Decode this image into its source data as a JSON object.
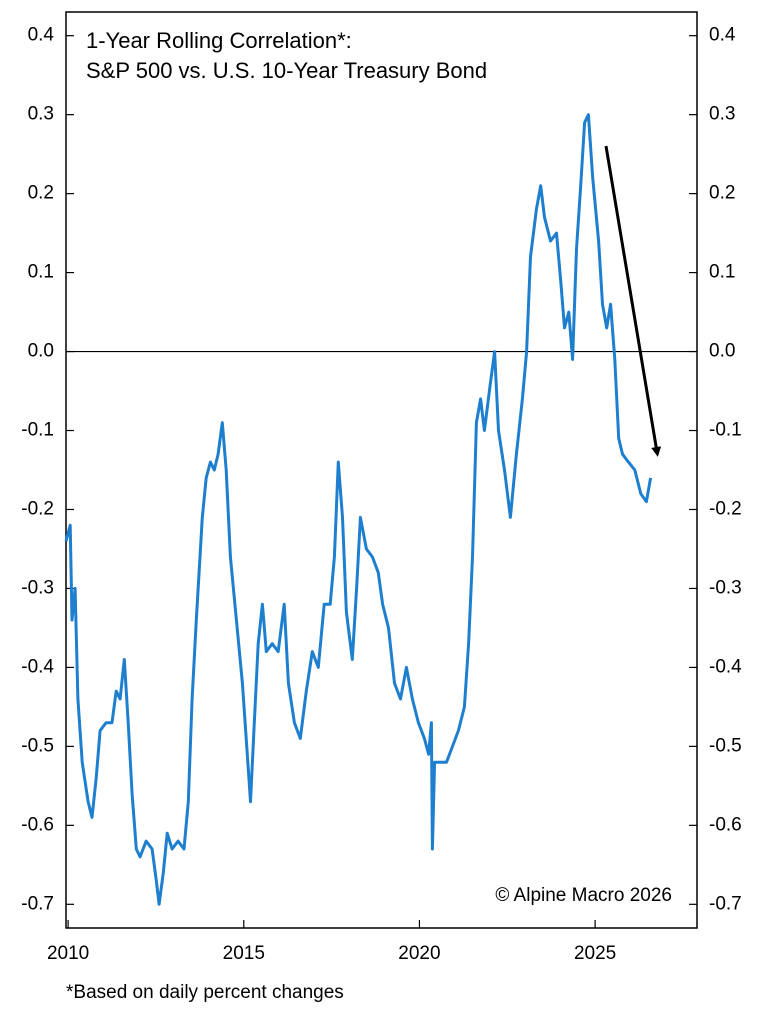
{
  "chart_data": {
    "type": "line",
    "title": [
      "1-Year Rolling Correlation*:",
      "S&P 500 vs. U.S. 10-Year Treasury Bond"
    ],
    "annotation": "© Alpine Macro 2026",
    "footnote": "*Based on daily percent changes",
    "xlim": [
      2009.94,
      2027.9
    ],
    "xticks": [
      2010,
      2015,
      2020,
      2025
    ],
    "ylim": [
      -0.73,
      0.43
    ],
    "yticks": [
      0.4,
      0.3,
      0.2,
      0.1,
      {
        "value": 0,
        "label": "0.0"
      },
      -0.1,
      -0.2,
      -0.3,
      -0.4,
      -0.5,
      -0.6,
      -0.7
    ],
    "zero_line": true,
    "series": [
      {
        "color": "#1f7fcf",
        "x": [
          2009.94,
          2010.06,
          2010.11,
          2010.2,
          2010.28,
          2010.4,
          2010.57,
          2010.68,
          2010.8,
          2010.91,
          2011.08,
          2011.25,
          2011.37,
          2011.48,
          2011.6,
          2011.71,
          2011.82,
          2011.94,
          2012.05,
          2012.22,
          2012.39,
          2012.51,
          2012.59,
          2012.71,
          2012.82,
          2012.96,
          2013.13,
          2013.3,
          2013.42,
          2013.53,
          2013.65,
          2013.82,
          2013.93,
          2014.05,
          2014.16,
          2014.27,
          2014.39,
          2014.5,
          2014.62,
          2014.79,
          2014.96,
          2015.07,
          2015.19,
          2015.3,
          2015.41,
          2015.53,
          2015.64,
          2015.81,
          2015.98,
          2016.15,
          2016.27,
          2016.44,
          2016.61,
          2016.78,
          2016.95,
          2017.12,
          2017.29,
          2017.46,
          2017.58,
          2017.69,
          2017.81,
          2017.92,
          2018.09,
          2018.21,
          2018.32,
          2018.49,
          2018.66,
          2018.83,
          2018.95,
          2019.12,
          2019.29,
          2019.46,
          2019.63,
          2019.8,
          2019.97,
          2020.14,
          2020.26,
          2020.34,
          2020.37,
          2020.43,
          2020.6,
          2020.77,
          2020.94,
          2021.11,
          2021.28,
          2021.4,
          2021.51,
          2021.62,
          2021.74,
          2021.85,
          2022.02,
          2022.14,
          2022.25,
          2022.42,
          2022.59,
          2022.76,
          2022.93,
          2023.05,
          2023.16,
          2023.33,
          2023.45,
          2023.56,
          2023.73,
          2023.9,
          2024.02,
          2024.13,
          2024.25,
          2024.36,
          2024.47,
          2024.59,
          2024.7,
          2024.81,
          2024.93,
          2025.1,
          2025.21,
          2025.33,
          2025.44,
          2025.56,
          2025.67,
          2025.78,
          2025.95,
          2026.13,
          2026.3,
          2026.46,
          2026.58
        ],
        "values": [
          -0.24,
          -0.22,
          -0.34,
          -0.3,
          -0.44,
          -0.52,
          -0.57,
          -0.59,
          -0.54,
          -0.48,
          -0.47,
          -0.47,
          -0.43,
          -0.44,
          -0.39,
          -0.47,
          -0.56,
          -0.63,
          -0.64,
          -0.62,
          -0.63,
          -0.67,
          -0.7,
          -0.66,
          -0.61,
          -0.63,
          -0.62,
          -0.63,
          -0.57,
          -0.44,
          -0.34,
          -0.21,
          -0.16,
          -0.14,
          -0.15,
          -0.13,
          -0.09,
          -0.15,
          -0.26,
          -0.34,
          -0.42,
          -0.49,
          -0.57,
          -0.47,
          -0.37,
          -0.32,
          -0.38,
          -0.37,
          -0.38,
          -0.32,
          -0.42,
          -0.47,
          -0.49,
          -0.43,
          -0.38,
          -0.4,
          -0.32,
          -0.32,
          -0.26,
          -0.14,
          -0.21,
          -0.33,
          -0.39,
          -0.3,
          -0.21,
          -0.25,
          -0.26,
          -0.28,
          -0.32,
          -0.35,
          -0.42,
          -0.44,
          -0.4,
          -0.44,
          -0.47,
          -0.49,
          -0.51,
          -0.47,
          -0.63,
          -0.52,
          -0.52,
          -0.52,
          -0.5,
          -0.48,
          -0.45,
          -0.37,
          -0.26,
          -0.09,
          -0.06,
          -0.1,
          -0.04,
          0.0,
          -0.1,
          -0.15,
          -0.21,
          -0.13,
          -0.06,
          0.0,
          0.12,
          0.18,
          0.21,
          0.17,
          0.14,
          0.15,
          0.09,
          0.03,
          0.05,
          -0.01,
          0.13,
          0.21,
          0.29,
          0.3,
          0.22,
          0.14,
          0.06,
          0.03,
          0.06,
          -0.01,
          -0.11,
          -0.13,
          -0.14,
          -0.15,
          -0.18,
          -0.19,
          -0.16
        ]
      }
    ]
  }
}
